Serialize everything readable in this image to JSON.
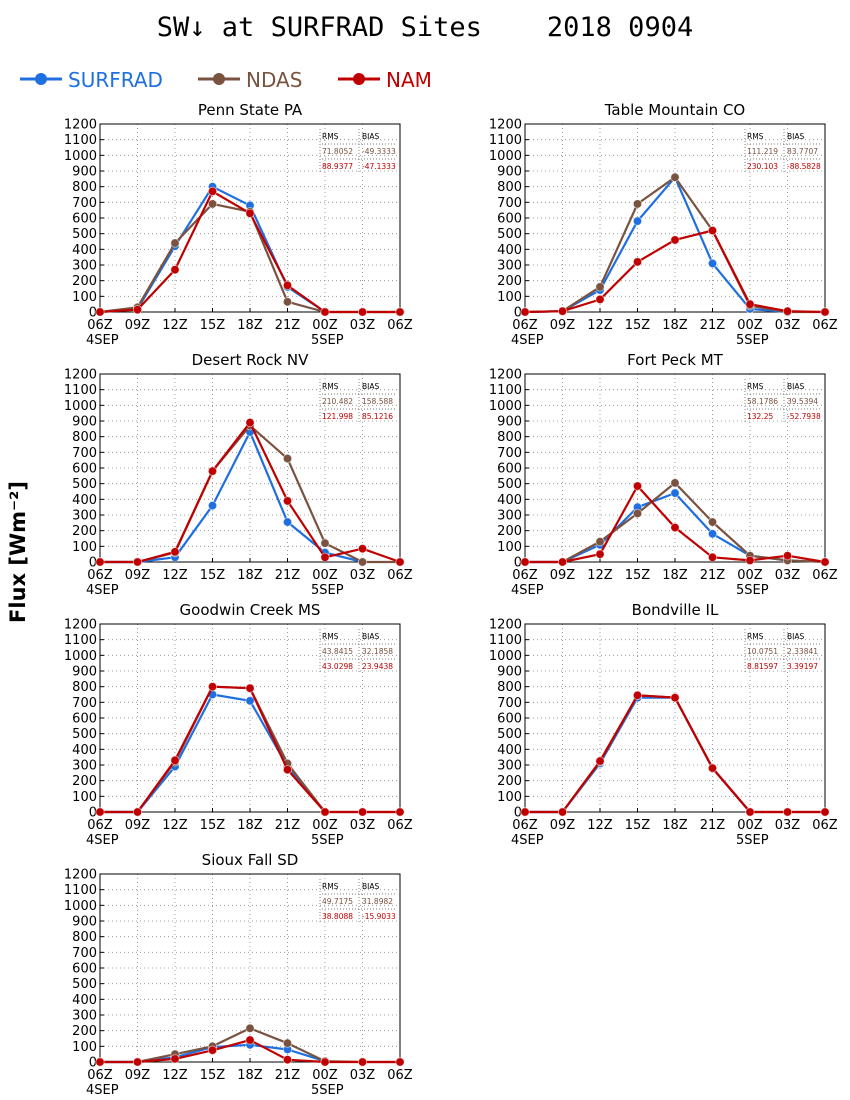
{
  "title": "SW↓ at SURFRAD Sites    2018 0904",
  "legend": [
    {
      "name": "SURFRAD",
      "color": "#1f6fe0"
    },
    {
      "name": "NDAS",
      "color": "#7a5240"
    },
    {
      "name": "NAM",
      "color": "#c00000"
    }
  ],
  "ylabel": "Flux [Wm⁻²]",
  "stats_headers": [
    "RMS",
    "BIAS"
  ],
  "chart_data": [
    {
      "type": "line",
      "title": "Penn State PA",
      "x": [
        "06Z",
        "09Z",
        "12Z",
        "15Z",
        "18Z",
        "21Z",
        "00Z",
        "03Z",
        "06Z"
      ],
      "x_sublabels": [
        "4SEP",
        "",
        "",
        "",
        "",
        "",
        "5SEP",
        "",
        ""
      ],
      "ylim": [
        0,
        1200
      ],
      "yticks": [
        0,
        100,
        200,
        300,
        400,
        500,
        600,
        700,
        800,
        900,
        1000,
        1100,
        1200
      ],
      "grid": true,
      "series": [
        {
          "name": "SURFRAD",
          "values": [
            0,
            20,
            420,
            800,
            680,
            160,
            0,
            null,
            null
          ]
        },
        {
          "name": "NDAS",
          "values": [
            0,
            30,
            440,
            690,
            640,
            65,
            0,
            0,
            0
          ]
        },
        {
          "name": "NAM",
          "values": [
            0,
            15,
            270,
            770,
            630,
            170,
            0,
            0,
            0
          ]
        }
      ],
      "stats": {
        "ndas": [
          "71.8052",
          "-49.3333"
        ],
        "nam": [
          "88.9377",
          "-47.1333"
        ]
      }
    },
    {
      "type": "line",
      "title": "Table Mountain CO",
      "x": [
        "06Z",
        "09Z",
        "12Z",
        "15Z",
        "18Z",
        "21Z",
        "00Z",
        "03Z",
        "06Z"
      ],
      "x_sublabels": [
        "4SEP",
        "",
        "",
        "",
        "",
        "",
        "5SEP",
        "",
        ""
      ],
      "ylim": [
        0,
        1200
      ],
      "yticks": [
        0,
        100,
        200,
        300,
        400,
        500,
        600,
        700,
        800,
        900,
        1000,
        1100,
        1200
      ],
      "grid": true,
      "series": [
        {
          "name": "SURFRAD",
          "values": [
            0,
            5,
            140,
            580,
            860,
            310,
            20,
            0,
            null
          ]
        },
        {
          "name": "NDAS",
          "values": [
            0,
            5,
            160,
            690,
            860,
            520,
            40,
            0,
            0
          ]
        },
        {
          "name": "NAM",
          "values": [
            0,
            5,
            80,
            320,
            460,
            520,
            50,
            5,
            0
          ]
        }
      ],
      "stats": {
        "ndas": [
          "111.219",
          "83.7707"
        ],
        "nam": [
          "230.103",
          "-88.5828"
        ]
      }
    },
    {
      "type": "line",
      "title": "Desert Rock NV",
      "x": [
        "06Z",
        "09Z",
        "12Z",
        "15Z",
        "18Z",
        "21Z",
        "00Z",
        "03Z",
        "06Z"
      ],
      "x_sublabels": [
        "4SEP",
        "",
        "",
        "",
        "",
        "",
        "5SEP",
        "",
        ""
      ],
      "ylim": [
        0,
        1200
      ],
      "yticks": [
        0,
        100,
        200,
        300,
        400,
        500,
        600,
        700,
        800,
        900,
        1000,
        1100,
        1200
      ],
      "grid": true,
      "series": [
        {
          "name": "SURFRAD",
          "values": [
            0,
            0,
            30,
            360,
            830,
            255,
            60,
            0,
            null
          ]
        },
        {
          "name": "NDAS",
          "values": [
            0,
            0,
            60,
            580,
            870,
            660,
            120,
            0,
            0
          ]
        },
        {
          "name": "NAM",
          "values": [
            0,
            0,
            65,
            580,
            890,
            390,
            30,
            85,
            0
          ]
        }
      ],
      "stats": {
        "ndas": [
          "210.482",
          "158.588"
        ],
        "nam": [
          "121.998",
          "85.1216"
        ]
      }
    },
    {
      "type": "line",
      "title": "Fort Peck MT",
      "x": [
        "06Z",
        "09Z",
        "12Z",
        "15Z",
        "18Z",
        "21Z",
        "00Z",
        "03Z",
        "06Z"
      ],
      "x_sublabels": [
        "4SEP",
        "",
        "",
        "",
        "",
        "",
        "5SEP",
        "",
        ""
      ],
      "ylim": [
        0,
        1200
      ],
      "yticks": [
        0,
        100,
        200,
        300,
        400,
        500,
        600,
        700,
        800,
        900,
        1000,
        1100,
        1200
      ],
      "grid": true,
      "series": [
        {
          "name": "SURFRAD",
          "values": [
            0,
            0,
            110,
            350,
            440,
            180,
            40,
            10,
            null
          ]
        },
        {
          "name": "NDAS",
          "values": [
            0,
            0,
            130,
            310,
            505,
            255,
            40,
            10,
            0
          ]
        },
        {
          "name": "NAM",
          "values": [
            0,
            0,
            50,
            485,
            220,
            30,
            10,
            40,
            0
          ]
        }
      ],
      "stats": {
        "ndas": [
          "58.1786",
          "39.5394"
        ],
        "nam": [
          "132.25",
          "-52.7938"
        ]
      }
    },
    {
      "type": "line",
      "title": "Goodwin Creek MS",
      "x": [
        "06Z",
        "09Z",
        "12Z",
        "15Z",
        "18Z",
        "21Z",
        "00Z",
        "03Z",
        "06Z"
      ],
      "x_sublabels": [
        "4SEP",
        "",
        "",
        "",
        "",
        "",
        "5SEP",
        "",
        ""
      ],
      "ylim": [
        0,
        1200
      ],
      "yticks": [
        0,
        100,
        200,
        300,
        400,
        500,
        600,
        700,
        800,
        900,
        1000,
        1100,
        1200
      ],
      "grid": true,
      "series": [
        {
          "name": "SURFRAD",
          "values": [
            0,
            0,
            290,
            750,
            710,
            290,
            0,
            null,
            null
          ]
        },
        {
          "name": "NDAS",
          "values": [
            0,
            0,
            320,
            800,
            790,
            310,
            0,
            0,
            0
          ]
        },
        {
          "name": "NAM",
          "values": [
            0,
            0,
            330,
            800,
            790,
            270,
            0,
            0,
            0
          ]
        }
      ],
      "stats": {
        "ndas": [
          "43.8415",
          "32.1858"
        ],
        "nam": [
          "43.0298",
          "23.9438"
        ]
      }
    },
    {
      "type": "line",
      "title": "Bondville IL",
      "x": [
        "06Z",
        "09Z",
        "12Z",
        "15Z",
        "18Z",
        "21Z",
        "00Z",
        "03Z",
        "06Z"
      ],
      "x_sublabels": [
        "4SEP",
        "",
        "",
        "",
        "",
        "",
        "5SEP",
        "",
        ""
      ],
      "ylim": [
        0,
        1200
      ],
      "yticks": [
        0,
        100,
        200,
        300,
        400,
        500,
        600,
        700,
        800,
        900,
        1000,
        1100,
        1200
      ],
      "grid": true,
      "series": [
        {
          "name": "SURFRAD",
          "values": [
            0,
            0,
            310,
            730,
            730,
            280,
            0,
            null,
            null
          ]
        },
        {
          "name": "NDAS",
          "values": [
            0,
            0,
            320,
            745,
            730,
            280,
            0,
            0,
            0
          ]
        },
        {
          "name": "NAM",
          "values": [
            0,
            0,
            325,
            745,
            730,
            280,
            0,
            0,
            0
          ]
        }
      ],
      "stats": {
        "ndas": [
          "10.0751",
          "2.33841"
        ],
        "nam": [
          "8.81597",
          "3.39197"
        ]
      }
    },
    {
      "type": "line",
      "title": "Sioux Fall SD",
      "x": [
        "06Z",
        "09Z",
        "12Z",
        "15Z",
        "18Z",
        "21Z",
        "00Z",
        "03Z",
        "06Z"
      ],
      "x_sublabels": [
        "4SEP",
        "",
        "",
        "",
        "",
        "",
        "5SEP",
        "",
        ""
      ],
      "ylim": [
        0,
        1200
      ],
      "yticks": [
        0,
        100,
        200,
        300,
        400,
        500,
        600,
        700,
        800,
        900,
        1000,
        1100,
        1200
      ],
      "grid": true,
      "series": [
        {
          "name": "SURFRAD",
          "values": [
            0,
            0,
            30,
            95,
            110,
            80,
            5,
            null,
            null
          ]
        },
        {
          "name": "NDAS",
          "values": [
            0,
            0,
            50,
            100,
            215,
            120,
            5,
            0,
            0
          ]
        },
        {
          "name": "NAM",
          "values": [
            0,
            0,
            20,
            75,
            140,
            15,
            0,
            0,
            0
          ]
        }
      ],
      "stats": {
        "ndas": [
          "49.7175",
          "31.8982"
        ],
        "nam": [
          "38.8088",
          "-15.9033"
        ]
      }
    }
  ]
}
